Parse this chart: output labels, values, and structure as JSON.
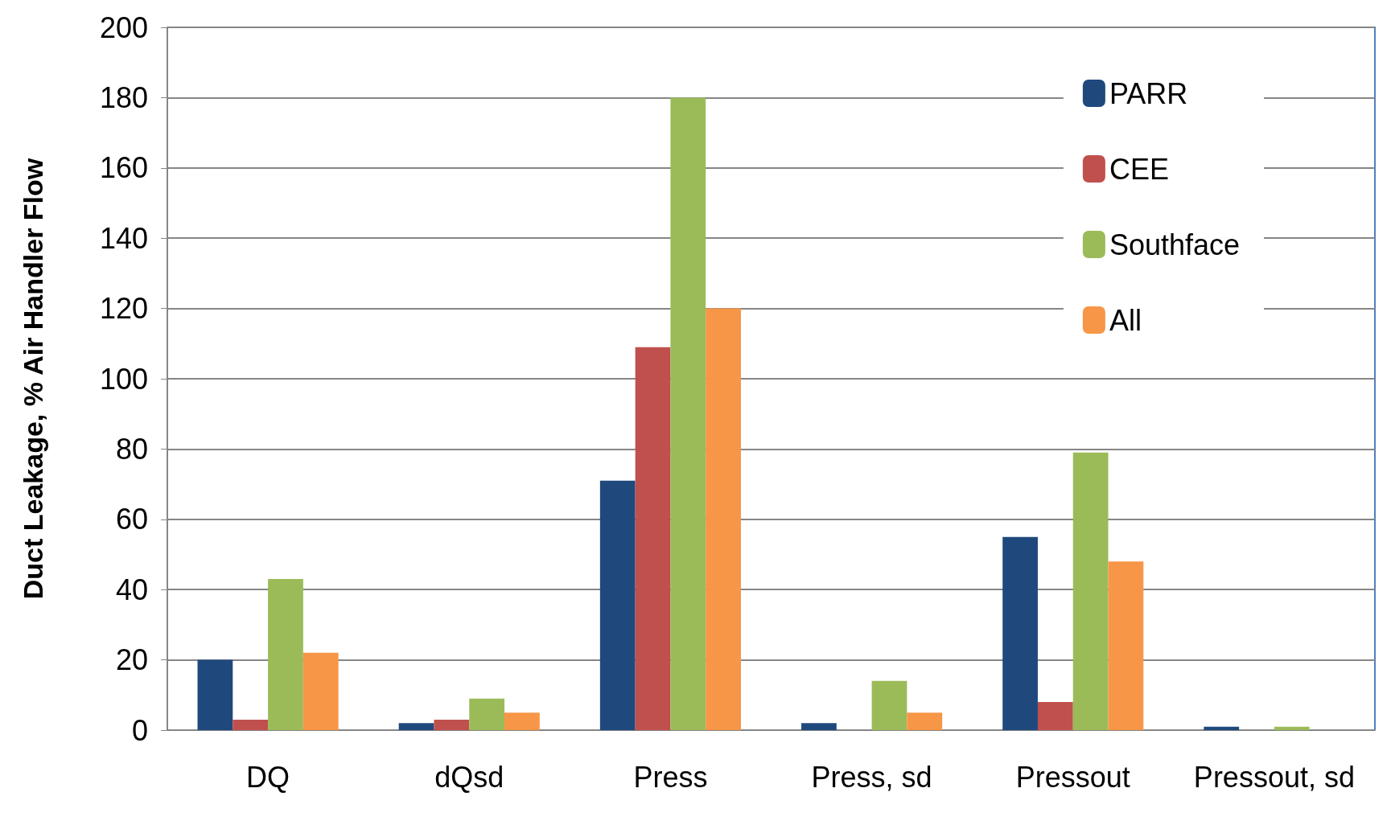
{
  "chart_data": {
    "type": "bar",
    "ylabel": "Duct Leakage, % Air Handler Flow",
    "categories": [
      "DQ",
      "dQsd",
      "Press",
      "Press, sd",
      "Pressout",
      "Pressout, sd"
    ],
    "series": [
      {
        "name": "PARR",
        "color": "#1f497d",
        "values": [
          20,
          2,
          71,
          2,
          55,
          1
        ]
      },
      {
        "name": "CEE",
        "color": "#c0504d",
        "values": [
          3,
          3,
          109,
          0,
          8,
          0
        ]
      },
      {
        "name": "Southface",
        "color": "#9bbb59",
        "values": [
          43,
          9,
          180,
          14,
          79,
          1
        ]
      },
      {
        "name": "All",
        "color": "#f79646",
        "values": [
          22,
          5,
          120,
          5,
          48,
          0
        ]
      }
    ],
    "ylim": [
      0,
      200
    ],
    "yticks": [
      0,
      20,
      40,
      60,
      80,
      100,
      120,
      140,
      160,
      180,
      200
    ],
    "grid": "y",
    "legend": "top right"
  }
}
